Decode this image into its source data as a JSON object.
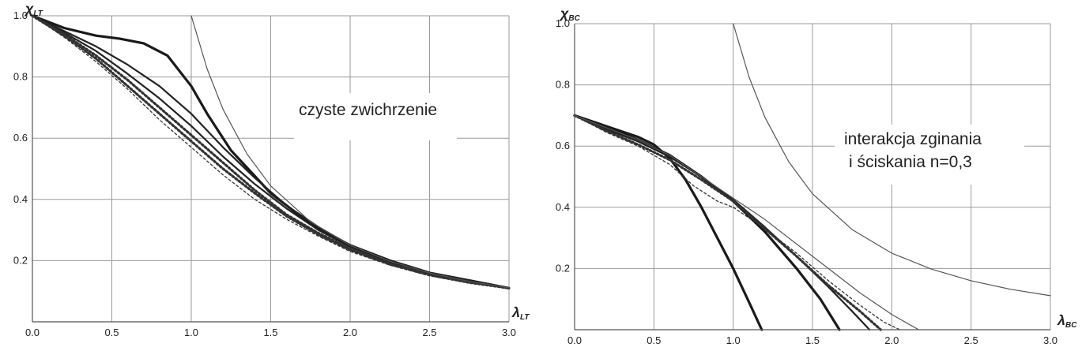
{
  "chart_data": [
    {
      "type": "line",
      "title": "",
      "xlabel": "λLT",
      "xlabel_main": "λ",
      "xlabel_sub": "LT",
      "ylabel": "χLT",
      "ylabel_main": "χ",
      "ylabel_sub": "LT",
      "annotation": "czyste zwichrzenie",
      "xlim": [
        0,
        3
      ],
      "ylim": [
        0,
        1
      ],
      "grid": true,
      "xticks": [
        "0.0",
        "0.5",
        "1.0",
        "1.5",
        "2.0",
        "2.5",
        "3.0"
      ],
      "yticks": [
        "0.2",
        "0.4",
        "0.6",
        "0.8",
        "1.0"
      ],
      "series": [
        {
          "style": "thick",
          "x": [
            0,
            0.2,
            0.4,
            0.55,
            0.7,
            0.85,
            1.0,
            1.1,
            1.25,
            1.5,
            1.75,
            2.0,
            2.25,
            2.5,
            2.75,
            3.0
          ],
          "y": [
            1.0,
            0.96,
            0.935,
            0.925,
            0.91,
            0.87,
            0.77,
            0.68,
            0.56,
            0.42,
            0.32,
            0.25,
            0.2,
            0.16,
            0.135,
            0.11
          ]
        },
        {
          "style": "medium",
          "x": [
            0,
            0.2,
            0.4,
            0.6,
            0.8,
            1.0,
            1.2,
            1.4,
            1.6,
            1.8,
            2.0,
            2.25,
            2.5,
            2.75,
            3.0
          ],
          "y": [
            1.0,
            0.95,
            0.9,
            0.84,
            0.77,
            0.68,
            0.57,
            0.47,
            0.38,
            0.31,
            0.25,
            0.2,
            0.16,
            0.135,
            0.11
          ]
        },
        {
          "style": "medium",
          "x": [
            0,
            0.2,
            0.4,
            0.6,
            0.8,
            1.0,
            1.2,
            1.4,
            1.6,
            1.8,
            2.0,
            2.25,
            2.5,
            2.75,
            3.0
          ],
          "y": [
            1.0,
            0.945,
            0.885,
            0.81,
            0.73,
            0.64,
            0.54,
            0.45,
            0.37,
            0.3,
            0.245,
            0.195,
            0.158,
            0.133,
            0.11
          ]
        },
        {
          "style": "dotted",
          "x": [
            0,
            0.2,
            0.4,
            0.6,
            0.8,
            1.0,
            1.2,
            1.4,
            1.6,
            1.8,
            2.0,
            2.25,
            2.5,
            2.75,
            3.0
          ],
          "y": [
            1.0,
            0.94,
            0.87,
            0.79,
            0.7,
            0.61,
            0.52,
            0.43,
            0.35,
            0.29,
            0.24,
            0.19,
            0.155,
            0.13,
            0.11
          ]
        },
        {
          "style": "dotted",
          "x": [
            0,
            0.2,
            0.4,
            0.6,
            0.8,
            1.0,
            1.2,
            1.4,
            1.6,
            1.8,
            2.0,
            2.25,
            2.5,
            2.75,
            3.0
          ],
          "y": [
            1.0,
            0.935,
            0.86,
            0.77,
            0.68,
            0.59,
            0.5,
            0.42,
            0.345,
            0.285,
            0.235,
            0.188,
            0.153,
            0.128,
            0.11
          ]
        },
        {
          "style": "dashed",
          "x": [
            0,
            0.2,
            0.4,
            0.6,
            0.8,
            1.0,
            1.2,
            1.4,
            1.6,
            1.8,
            2.0,
            2.25,
            2.5,
            2.75,
            3.0
          ],
          "y": [
            1.0,
            0.93,
            0.85,
            0.76,
            0.66,
            0.57,
            0.48,
            0.4,
            0.335,
            0.28,
            0.23,
            0.185,
            0.15,
            0.127,
            0.11
          ]
        },
        {
          "style": "thin",
          "x": [
            1.0,
            1.1,
            1.2,
            1.35,
            1.5,
            1.75,
            2.0,
            2.25,
            2.5,
            2.75,
            3.0
          ],
          "y": [
            1.0,
            0.826,
            0.694,
            0.549,
            0.444,
            0.327,
            0.25,
            0.198,
            0.16,
            0.132,
            0.111
          ]
        }
      ]
    },
    {
      "type": "line",
      "title": "",
      "xlabel": "λBC",
      "xlabel_main": "λ",
      "xlabel_sub": "BC",
      "ylabel": "χBC",
      "ylabel_main": "χ",
      "ylabel_sub": "BC",
      "annotation_line1": "interakcja zginania",
      "annotation_line2": "i ściskania n=0,3",
      "xlim": [
        0,
        3
      ],
      "ylim": [
        0,
        1
      ],
      "grid": true,
      "xticks": [
        "0.0",
        "0.5",
        "1.0",
        "1.5",
        "2.0",
        "2.5",
        "3.0"
      ],
      "yticks": [
        "0.2",
        "0.4",
        "0.6",
        "0.8",
        "1.0"
      ],
      "series": [
        {
          "style": "thick",
          "x": [
            0,
            0.2,
            0.4,
            0.5,
            0.6,
            0.7,
            0.8,
            0.9,
            1.0,
            1.1,
            1.18
          ],
          "y": [
            0.7,
            0.665,
            0.63,
            0.605,
            0.56,
            0.49,
            0.4,
            0.3,
            0.2,
            0.09,
            0.0
          ]
        },
        {
          "style": "thick",
          "x": [
            0,
            0.2,
            0.4,
            0.6,
            0.8,
            1.0,
            1.2,
            1.4,
            1.55,
            1.67
          ],
          "y": [
            0.7,
            0.66,
            0.62,
            0.57,
            0.5,
            0.42,
            0.32,
            0.2,
            0.1,
            0.0
          ]
        },
        {
          "style": "medium",
          "x": [
            0,
            0.2,
            0.4,
            0.6,
            0.8,
            1.0,
            1.2,
            1.4,
            1.6,
            1.75,
            1.86
          ],
          "y": [
            0.7,
            0.655,
            0.615,
            0.565,
            0.5,
            0.425,
            0.335,
            0.24,
            0.14,
            0.06,
            0.0
          ]
        },
        {
          "style": "dotted",
          "x": [
            0,
            0.2,
            0.4,
            0.6,
            0.8,
            1.0,
            1.2,
            1.4,
            1.6,
            1.8,
            1.93
          ],
          "y": [
            0.7,
            0.65,
            0.605,
            0.555,
            0.49,
            0.42,
            0.33,
            0.24,
            0.145,
            0.06,
            0.0
          ]
        },
        {
          "style": "dashed",
          "x": [
            0,
            0.2,
            0.4,
            0.6,
            0.75,
            0.9,
            1.0,
            1.2,
            1.4,
            1.6,
            1.8,
            1.95,
            2.05
          ],
          "y": [
            0.7,
            0.645,
            0.6,
            0.54,
            0.47,
            0.42,
            0.4,
            0.33,
            0.25,
            0.16,
            0.08,
            0.025,
            0.0
          ]
        },
        {
          "style": "thin",
          "x": [
            0,
            0.2,
            0.4,
            0.6,
            0.8,
            1.0,
            1.2,
            1.4,
            1.6,
            1.8,
            2.0,
            2.1,
            2.17
          ],
          "y": [
            0.7,
            0.66,
            0.62,
            0.57,
            0.5,
            0.43,
            0.36,
            0.28,
            0.2,
            0.12,
            0.05,
            0.02,
            0.0
          ]
        },
        {
          "style": "thin",
          "x": [
            1.0,
            1.1,
            1.2,
            1.35,
            1.5,
            1.75,
            2.0,
            2.25,
            2.5,
            2.75,
            3.0
          ],
          "y": [
            1.0,
            0.826,
            0.694,
            0.549,
            0.444,
            0.327,
            0.25,
            0.198,
            0.16,
            0.132,
            0.111
          ]
        }
      ]
    }
  ]
}
